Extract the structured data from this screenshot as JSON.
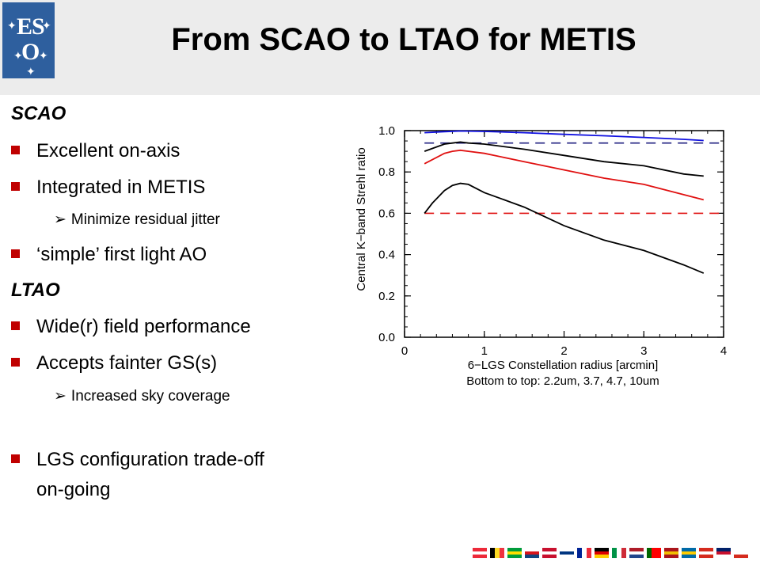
{
  "slide": {
    "title": "From SCAO to LTAO for METIS",
    "logo_text_top": "ES",
    "logo_text_bottom": "O"
  },
  "left_column": {
    "scao_heading": "SCAO",
    "scao_items": [
      "Excellent on-axis",
      "Integrated in METIS"
    ],
    "scao_sub": "Minimize residual jitter",
    "scao_item3": "‘simple’ first light AO",
    "ltao_heading": "LTAO",
    "ltao_items": [
      "Wide(r) field performance",
      "Accepts fainter GS(s)"
    ],
    "ltao_sub": "Increased sky coverage",
    "final_item_line1": "LGS configuration trade-off",
    "final_item_line2": "on-going"
  },
  "colors": {
    "accent_red": "#c00000",
    "logo_blue": "#2e5f9e",
    "series_blue": "#1010e0",
    "series_red": "#e01010",
    "series_black": "#000000"
  },
  "chart_data": {
    "type": "line",
    "xlabel": "6−LGS Constellation radius [arcmin]",
    "xlabel_line2": "Bottom to top: 2.2um, 3.7, 4.7, 10um",
    "ylabel": "Central K−band Strehl ratio",
    "xlim": [
      0,
      4
    ],
    "ylim": [
      0,
      1
    ],
    "xticks": [
      0,
      1,
      2,
      3,
      4
    ],
    "yticks": [
      0.0,
      0.2,
      0.4,
      0.6,
      0.8,
      1.0
    ],
    "ytick_labels": [
      "0.0",
      "0.2",
      "0.4",
      "0.6",
      "0.8",
      "1.0"
    ],
    "series": [
      {
        "color": "#000000",
        "x": [
          0.25,
          0.35,
          0.5,
          0.6,
          0.7,
          0.8,
          1.0,
          1.25,
          1.5,
          2.0,
          2.5,
          3.0,
          3.5,
          3.75
        ],
        "y": [
          0.6,
          0.65,
          0.71,
          0.735,
          0.745,
          0.74,
          0.7,
          0.665,
          0.63,
          0.54,
          0.47,
          0.42,
          0.35,
          0.31
        ]
      },
      {
        "color": "#e01010",
        "x": [
          0.25,
          0.5,
          0.6,
          0.7,
          0.8,
          1.0,
          1.5,
          2.0,
          2.5,
          3.0,
          3.5,
          3.75
        ],
        "y": [
          0.84,
          0.89,
          0.9,
          0.905,
          0.9,
          0.89,
          0.85,
          0.81,
          0.77,
          0.74,
          0.69,
          0.665
        ]
      },
      {
        "color": "#000000",
        "x": [
          0.25,
          0.5,
          0.6,
          0.7,
          0.8,
          1.0,
          1.5,
          2.0,
          2.5,
          3.0,
          3.5,
          3.75
        ],
        "y": [
          0.9,
          0.935,
          0.94,
          0.945,
          0.94,
          0.935,
          0.91,
          0.88,
          0.85,
          0.83,
          0.79,
          0.78
        ]
      },
      {
        "color": "#1010e0",
        "x": [
          0.25,
          0.5,
          0.7,
          1.0,
          1.5,
          2.0,
          2.5,
          3.0,
          3.5,
          3.75
        ],
        "y": [
          0.99,
          0.995,
          0.998,
          0.996,
          0.99,
          0.982,
          0.975,
          0.967,
          0.958,
          0.952
        ]
      }
    ],
    "reference_lines": [
      {
        "color": "#e01010",
        "y": 0.6,
        "style": "dashed"
      },
      {
        "color": "#202080",
        "y": 0.94,
        "style": "dashed"
      }
    ]
  }
}
